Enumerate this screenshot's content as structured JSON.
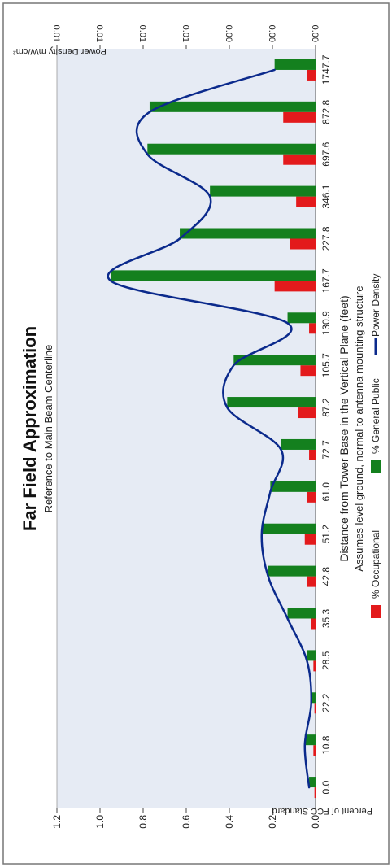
{
  "chart_data": {
    "type": "bar",
    "title": "Far Field Approximation",
    "subtitle": "Reference to Main Beam Centerline",
    "xlabel": "Distance from Tower Base in the Vertical Plane (feet)",
    "note": "Assumes level ground, normal to antenna mounting structure",
    "ylabel_left": "Percent of FCC Standard",
    "ylabel_right": "Power Density mW/cm²",
    "categories": [
      "0.0",
      "10.8",
      "22.2",
      "28.5",
      "35.3",
      "42.8",
      "51.2",
      "61.0",
      "72.7",
      "87.2",
      "105.7",
      "130.9",
      "167.7",
      "227.8",
      "346.1",
      "697.6",
      "872.8",
      "1747.7"
    ],
    "series": [
      {
        "name": "% Occupational",
        "color": "#e31a1c",
        "values": [
          0.005,
          0.01,
          0.005,
          0.01,
          0.02,
          0.04,
          0.05,
          0.04,
          0.03,
          0.08,
          0.07,
          0.03,
          0.19,
          0.12,
          0.09,
          0.15,
          0.15,
          0.04
        ]
      },
      {
        "name": "% General Public",
        "color": "#14801e",
        "values": [
          0.03,
          0.05,
          0.02,
          0.04,
          0.13,
          0.22,
          0.25,
          0.21,
          0.16,
          0.41,
          0.38,
          0.13,
          0.95,
          0.63,
          0.49,
          0.78,
          0.77,
          0.19
        ]
      },
      {
        "name": "Power Density",
        "color": "#0b2a8c",
        "type": "line",
        "values": [
          0.03,
          0.05,
          0.02,
          0.04,
          0.13,
          0.22,
          0.25,
          0.21,
          0.16,
          0.41,
          0.38,
          0.13,
          0.95,
          0.63,
          0.49,
          0.78,
          0.77,
          0.19
        ]
      }
    ],
    "left_ticks": [
      "0.0",
      "0.2",
      "0.4",
      "0.6",
      "0.8",
      "1.0",
      "1.2"
    ],
    "right_ticks": [
      "0.00",
      "0.00",
      "0.00",
      "0.01",
      "0.01",
      "0.01",
      "0.01"
    ],
    "ylim": [
      0,
      1.2
    ],
    "legend_position": "bottom",
    "grid": false,
    "orientation": "rotated 90° clockwise",
    "colors": {
      "plot_bg": "#e6ebf4",
      "occupational": "#e31a1c",
      "general": "#14801e",
      "line": "#0b2a8c"
    }
  }
}
